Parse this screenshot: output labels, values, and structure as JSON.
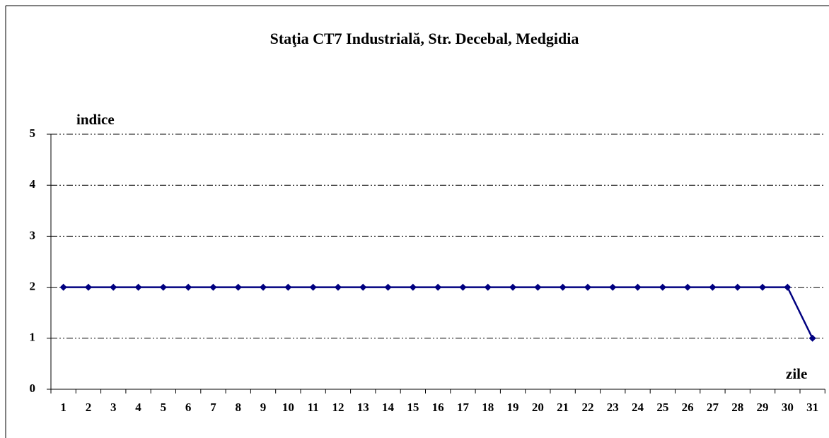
{
  "chart_data": {
    "type": "line",
    "title": "Staţia CT7 Industrială,  Str. Decebal, Medgidia",
    "y_label": "indice",
    "x_label": "zile",
    "categories": [
      1,
      2,
      3,
      4,
      5,
      6,
      7,
      8,
      9,
      10,
      11,
      12,
      13,
      14,
      15,
      16,
      17,
      18,
      19,
      20,
      21,
      22,
      23,
      24,
      25,
      26,
      27,
      28,
      29,
      30,
      31
    ],
    "series": [
      {
        "name": "indice",
        "color": "#000080",
        "values": [
          2,
          2,
          2,
          2,
          2,
          2,
          2,
          2,
          2,
          2,
          2,
          2,
          2,
          2,
          2,
          2,
          2,
          2,
          2,
          2,
          2,
          2,
          2,
          2,
          2,
          2,
          2,
          2,
          2,
          2,
          1
        ]
      }
    ],
    "ylim": [
      0,
      5
    ],
    "yticks": [
      0,
      1,
      2,
      3,
      4,
      5
    ],
    "grid": true,
    "legend": false
  }
}
